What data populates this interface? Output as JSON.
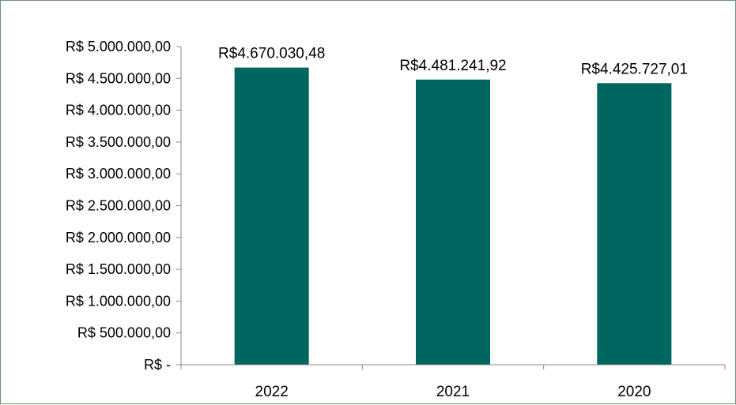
{
  "chart_data": {
    "type": "bar",
    "title": "",
    "xlabel": "",
    "ylabel": "",
    "categories": [
      "2022",
      "2021",
      "2020"
    ],
    "values": [
      4670030.48,
      4481241.92,
      4425727.01
    ],
    "data_labels": [
      "R$4.670.030,48",
      "R$4.481.241,92",
      "R$4.425.727,01"
    ],
    "ylim": [
      0,
      5000000
    ],
    "yticks": [
      0,
      500000,
      1000000,
      1500000,
      2000000,
      2500000,
      3000000,
      3500000,
      4000000,
      4500000,
      5000000
    ],
    "ytick_labels": [
      "R$ -",
      "R$ 500.000,00",
      "R$ 1.000.000,00",
      "R$ 1.500.000,00",
      "R$ 2.000.000,00",
      "R$ 2.500.000,00",
      "R$ 3.000.000,00",
      "R$ 3.500.000,00",
      "R$ 4.000.000,00",
      "R$ 4.500.000,00",
      "R$ 5.000.000,00"
    ],
    "grid": false,
    "legend": "none",
    "bar_color": "#006660"
  }
}
